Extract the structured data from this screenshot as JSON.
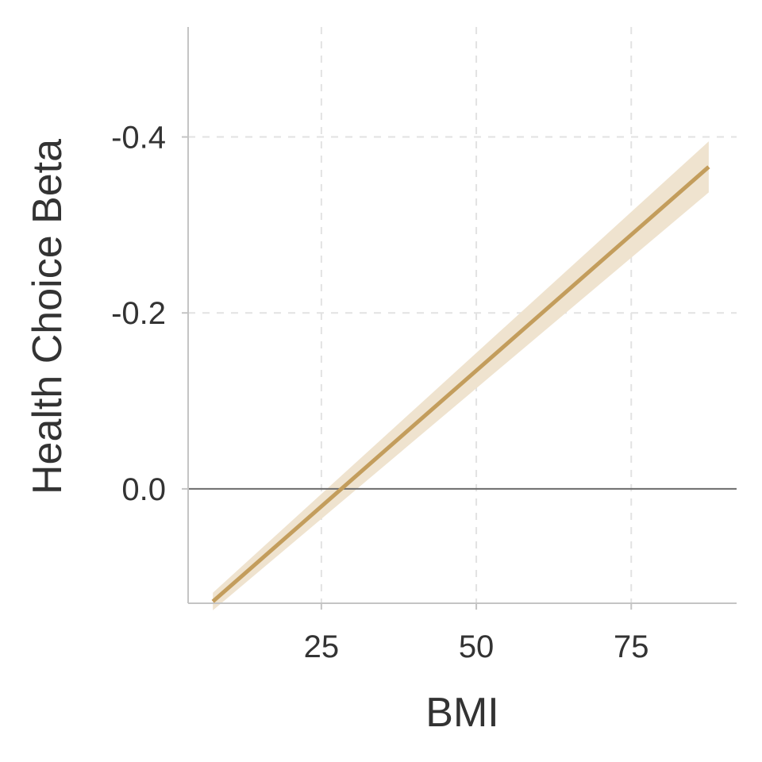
{
  "chart_data": {
    "type": "line",
    "title": "",
    "xlabel": "BMI",
    "ylabel": "Health Choice Beta",
    "xlim": [
      3.5,
      92
    ],
    "ylim": [
      -0.525,
      0.13
    ],
    "y_inverted": true,
    "x_ticks": [
      {
        "value": 25,
        "label": "25"
      },
      {
        "value": 50,
        "label": "50"
      },
      {
        "value": 75,
        "label": "75"
      }
    ],
    "y_ticks": [
      {
        "value": -0.4,
        "label": "-0.4"
      },
      {
        "value": -0.2,
        "label": "-0.2"
      },
      {
        "value": 0.0,
        "label": "0.0"
      }
    ],
    "reference_line_y": 0.0,
    "grid": true,
    "series": [
      {
        "x": [
          7.5,
          87.5
        ],
        "y": [
          0.128,
          -0.366
        ],
        "ci_lower": [
          0.118,
          -0.395
        ],
        "ci_upper": [
          0.138,
          -0.337
        ],
        "color": "#c39d5c",
        "band_color": "#efe3cf"
      }
    ]
  }
}
